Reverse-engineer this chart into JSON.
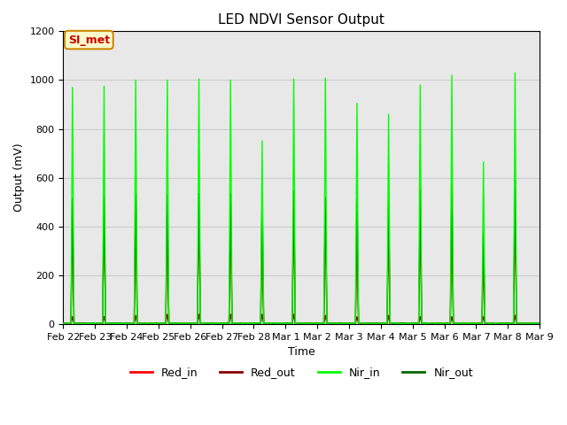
{
  "title": "LED NDVI Sensor Output",
  "xlabel": "Time",
  "ylabel": "Output (mV)",
  "ylim": [
    0,
    1200
  ],
  "background_color": "#e8e8e8",
  "annotation_text": "SI_met",
  "annotation_bg": "#ffffcc",
  "annotation_border": "#cc8800",
  "annotation_text_color": "#cc0000",
  "legend_entries": [
    "Red_in",
    "Red_out",
    "Nir_in",
    "Nir_out"
  ],
  "legend_colors": [
    "#ff0000",
    "#880000",
    "#00ff00",
    "#006600"
  ],
  "tick_labels": [
    "Feb 22",
    "Feb 23",
    "Feb 24",
    "Feb 25",
    "Feb 26",
    "Feb 27",
    "Feb 28",
    "Mar 1",
    "Mar 2",
    "Mar 3",
    "Mar 4",
    "Mar 5",
    "Mar 6",
    "Mar 7",
    "Mar 8",
    "Mar 9"
  ],
  "num_cycles": 15,
  "red_in_peaks": [
    440,
    430,
    450,
    450,
    470,
    430,
    350,
    490,
    500,
    370,
    400,
    430,
    430,
    270,
    450
  ],
  "red_out_peaks": [
    30,
    30,
    35,
    40,
    40,
    40,
    40,
    40,
    35,
    30,
    35,
    30,
    30,
    30,
    35
  ],
  "nir_in_peaks": [
    970,
    975,
    1000,
    1000,
    1005,
    1000,
    750,
    1005,
    1008,
    905,
    860,
    980,
    1020,
    665,
    1030
  ],
  "nir_out_peaks": [
    515,
    525,
    535,
    530,
    535,
    535,
    540,
    545,
    520,
    515,
    530,
    555,
    575,
    375,
    590
  ],
  "grid_color": "#cccccc",
  "line_width": 1.0,
  "total_days": 15.5
}
